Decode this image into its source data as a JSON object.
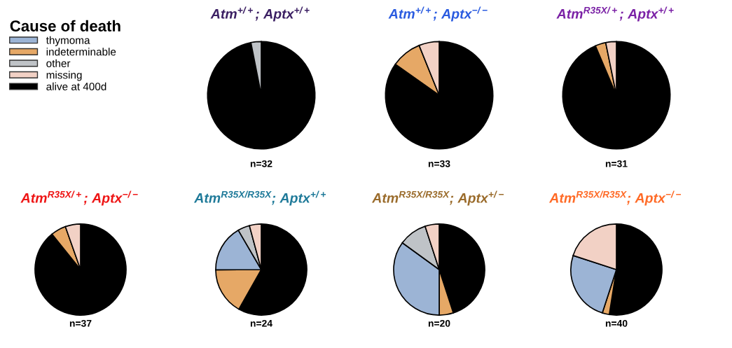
{
  "chart_data": [
    {
      "type": "pie",
      "title": "Atm$^{+/+}$; Aptx$^{+/+}$",
      "xlabel": "n=32",
      "legend": "left",
      "legend_title": "Cause of death",
      "categories": [
        "thymoma",
        "indeterminable",
        "other",
        "missing",
        "alive at 400d"
      ],
      "values": [
        0,
        0,
        3.1,
        0,
        96.9
      ],
      "colors": [
        "#9cb4d5",
        "#e6a866",
        "#bfc3c7",
        "#f2d1c5",
        "#000000"
      ]
    },
    {
      "type": "pie",
      "title": "Atm$^{+/+}$; Aptx$^{−/−}$",
      "xlabel": "n=33",
      "categories": [
        null,
        null,
        null,
        null,
        null
      ],
      "values": [
        0,
        9.1,
        0,
        6.1,
        84.8
      ],
      "colors": [
        "#9cb4d5",
        "#e6a866",
        "#bfc3c7",
        "#f2d1c5",
        "#000000"
      ]
    },
    {
      "type": "pie",
      "title": "Atm$^{R35X/+}$; Aptx$^{+/+}$",
      "xlabel": "n=31",
      "categories": [
        null,
        null,
        null,
        null,
        null
      ],
      "values": [
        0,
        3.2,
        0,
        3.2,
        93.6
      ],
      "colors": [
        "#9cb4d5",
        "#e6a866",
        "#bfc3c7",
        "#f2d1c5",
        "#000000"
      ]
    },
    {
      "type": "pie",
      "title": "Atm$^{R35X/+}$; Aptx$^{−/−}$",
      "xlabel": "n=37",
      "categories": [
        null,
        null,
        null,
        null,
        null
      ],
      "values": [
        0,
        5.4,
        0,
        5.4,
        89.2
      ],
      "colors": [
        "#9cb4d5",
        "#e6a866",
        "#bfc3c7",
        "#f2d1c5",
        "#000000"
      ]
    },
    {
      "type": "pie",
      "title": "Atm$^{R35X/R35X}$; Aptx$^{+/+}$",
      "xlabel": "n=24",
      "categories": [
        null,
        null,
        null,
        null,
        null
      ],
      "values": [
        16.7,
        16.7,
        4.2,
        4.2,
        58.2
      ],
      "colors": [
        "#9cb4d5",
        "#e6a866",
        "#bfc3c7",
        "#f2d1c5",
        "#000000"
      ]
    },
    {
      "type": "pie",
      "title": "Atm$^{R35X/R35X}$; Aptx$^{+/−}$",
      "xlabel": "n=20",
      "categories": [
        null,
        null,
        null,
        null,
        null
      ],
      "values": [
        35,
        5,
        10,
        5,
        45
      ],
      "colors": [
        "#9cb4d5",
        "#e6a866",
        "#bfc3c7",
        "#f2d1c5",
        "#000000"
      ]
    },
    {
      "type": "pie",
      "title": "Atm$^{R35X/R35X}$; Aptx$^{−/−}$",
      "xlabel": "n=40",
      "categories": [
        null,
        null,
        null,
        null,
        null
      ],
      "values": [
        25,
        2.5,
        0,
        20,
        52.5
      ],
      "colors": [
        "#9cb4d5",
        "#e6a866",
        "#bfc3c7",
        "#f2d1c5",
        "#000000"
      ]
    }
  ]
}
